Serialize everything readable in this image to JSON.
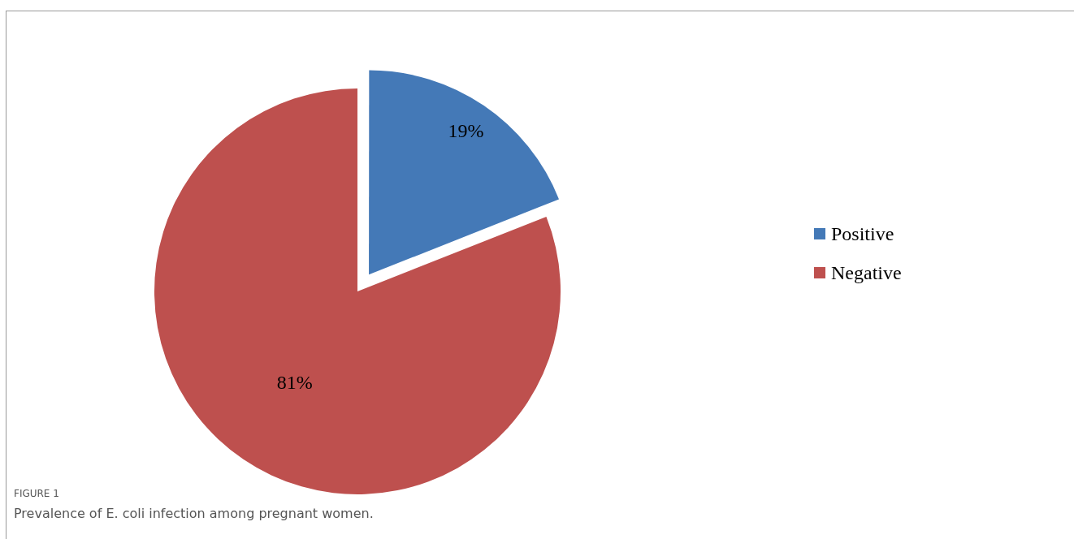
{
  "chart_data": {
    "type": "pie",
    "title": "FIGURE 1",
    "subtitle": "Prevalence of E. coli infection among pregnant women.",
    "categories": [
      "Positive",
      "Negative"
    ],
    "values": [
      19,
      81
    ],
    "colors": [
      "#4479b7",
      "#be504e"
    ],
    "value_labels": [
      "19%",
      "81%"
    ],
    "legend": "right"
  }
}
